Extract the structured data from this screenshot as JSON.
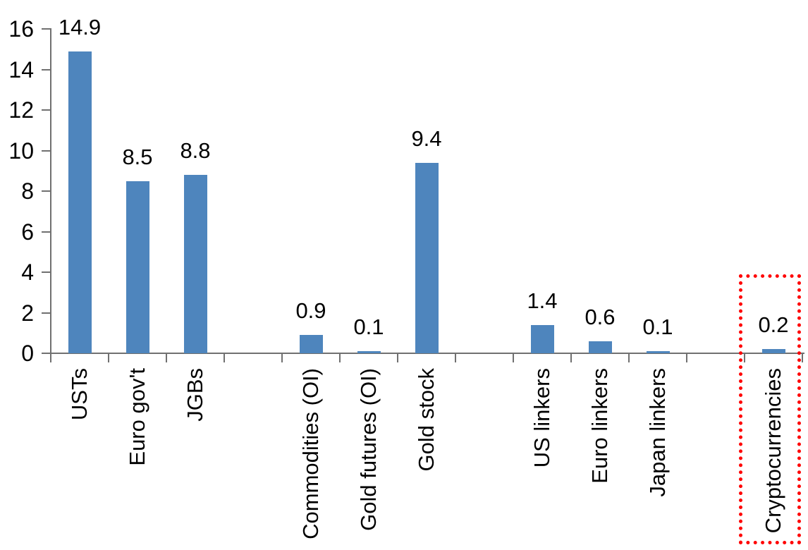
{
  "chart_data": {
    "type": "bar",
    "title": "",
    "xlabel": "",
    "ylabel": "",
    "categories": [
      "USTs",
      "Euro gov't",
      "JGBs",
      "Commodities (OI)",
      "Gold futures (OI)",
      "Gold stock",
      "US linkers",
      "Euro linkers",
      "Japan linkers",
      "Cryptocurrencies"
    ],
    "values": [
      14.9,
      8.5,
      8.8,
      0.9,
      0.1,
      9.4,
      1.4,
      0.6,
      0.1,
      0.2
    ],
    "data_labels": [
      "14.9",
      "8.5",
      "8.8",
      "0.9",
      "0.1",
      "9.4",
      "1.4",
      "0.6",
      "0.1",
      "0.2"
    ],
    "y_ticks": [
      0,
      2,
      4,
      6,
      8,
      10,
      12,
      14,
      16
    ],
    "ylim": [
      0,
      16
    ],
    "grid": false,
    "legend": false,
    "slot_count": 13,
    "category_slots": [
      0,
      1,
      2,
      4,
      5,
      6,
      8,
      9,
      10,
      12
    ],
    "bar_color": "#4E85BD",
    "axis_color": "#707070",
    "text_color": "#000000",
    "highlight": {
      "category": "Cryptocurrencies",
      "box_color": "#FF0000",
      "style": "dotted"
    }
  }
}
